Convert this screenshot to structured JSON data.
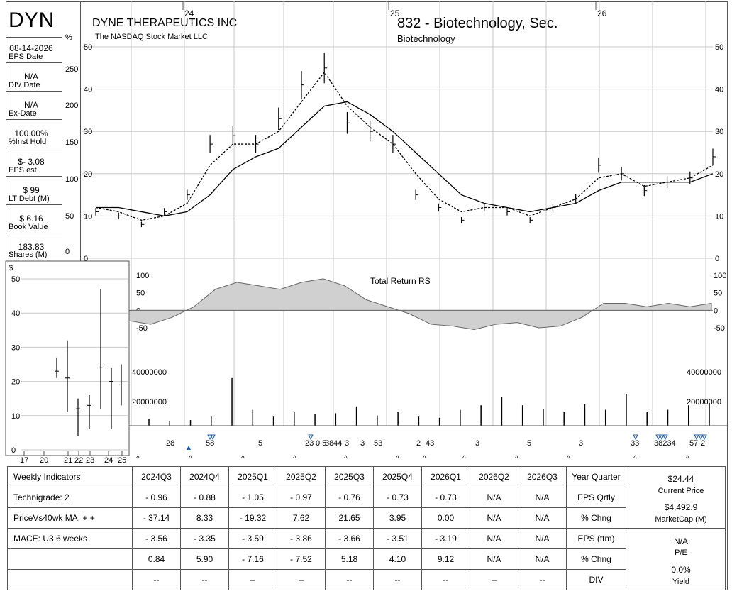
{
  "header": {
    "ticker": "DYN",
    "company": "DYNE THERAPEUTICS INC",
    "exchange": "The NASDAQ Stock Market LLC",
    "group": "832 - Biotechnology, Sec.",
    "subgroup": "Biotechnology"
  },
  "sidebar": [
    {
      "value": "08-14-2026",
      "label": "EPS Date"
    },
    {
      "value": "N/A",
      "label": "DIV Date"
    },
    {
      "value": "N/A",
      "label": "Ex-Date"
    },
    {
      "value": "100.00%",
      "label": "%Inst Hold"
    },
    {
      "value": "$- 3.08",
      "label": "EPS est."
    },
    {
      "value": "$ 99",
      "label": "LT Debt (M)"
    },
    {
      "value": "$ 6.16",
      "label": "Book Value"
    },
    {
      "value": "183.83",
      "label": "Shares (M)"
    }
  ],
  "chart_data": [
    {
      "type": "line",
      "title": "",
      "x": [
        "2024-01",
        "2024-02",
        "2024-03",
        "2024-04",
        "2024-05",
        "2024-06",
        "2024-07",
        "2024-08",
        "2024-09",
        "2024-10",
        "2024-11",
        "2024-12",
        "2025-01",
        "2025-02",
        "2025-03",
        "2025-04",
        "2025-05",
        "2025-06",
        "2025-07",
        "2025-08",
        "2025-09",
        "2025-10",
        "2025-11",
        "2025-12",
        "2026-01",
        "2026-02",
        "2026-03",
        "2026-04"
      ],
      "year_labels": [
        "24",
        "25",
        "26"
      ],
      "series": [
        {
          "name": "",
          "values": [
            11,
            10,
            8,
            11,
            15,
            27,
            29,
            27,
            33,
            41,
            45,
            32,
            30,
            27,
            15,
            12,
            9,
            12,
            11,
            9,
            12,
            14,
            22,
            20,
            16,
            18,
            19,
            24
          ]
        },
        {
          "name": "",
          "values": [
            12,
            11,
            9,
            10,
            13,
            22,
            27,
            27,
            30,
            37,
            44,
            36,
            31,
            27,
            20,
            14,
            11,
            12,
            12,
            10,
            12,
            14,
            19,
            20,
            17,
            18,
            19,
            22
          ]
        },
        {
          "name": "",
          "values": [
            12,
            12,
            11,
            10,
            11,
            15,
            21,
            24,
            26,
            31,
            36,
            37,
            34,
            30,
            25,
            20,
            15,
            13,
            12,
            11,
            12,
            13,
            16,
            18,
            18,
            18,
            18,
            20
          ]
        }
      ],
      "ylim": [
        0,
        50
      ],
      "yticks": [
        0,
        10,
        20,
        30,
        40,
        50
      ],
      "pct_ticks": [
        "0",
        "50",
        "100",
        "150",
        "200",
        "250",
        "%"
      ]
    },
    {
      "type": "area",
      "title": "Total Return RS",
      "values": [
        -30,
        -40,
        -20,
        10,
        60,
        80,
        70,
        60,
        80,
        90,
        70,
        30,
        10,
        -10,
        -40,
        -45,
        -55,
        -40,
        -35,
        -50,
        -45,
        -20,
        20,
        20,
        10,
        20,
        10,
        20
      ],
      "ylim": [
        -50,
        100
      ],
      "yticks": [
        100,
        50,
        0,
        -50
      ]
    },
    {
      "type": "bar",
      "title": "Volume",
      "values": [
        6,
        4,
        5,
        8,
        42,
        14,
        8,
        12,
        10,
        11,
        17,
        9,
        12,
        8,
        7,
        14,
        18,
        25,
        18,
        15,
        12,
        19,
        14,
        28,
        12,
        14,
        18,
        20
      ],
      "ytick_labels": [
        "40000000",
        "20000000"
      ],
      "counts": [
        "28",
        "58",
        "5",
        "23",
        "0 5",
        "38",
        "44",
        "3",
        "3",
        "53",
        "2",
        "43",
        "3",
        "5",
        "3",
        "33",
        "38234",
        "57",
        "2"
      ]
    },
    {
      "type": "line",
      "title": "",
      "x_labels": [
        "17",
        "20",
        "21",
        "22",
        "23",
        "24",
        "25"
      ],
      "y_unit": "$",
      "yticks": [
        0,
        10,
        20,
        30,
        40,
        50
      ],
      "ylim": [
        0,
        50
      ],
      "ranges": [
        {
          "low": 21,
          "high": 27,
          "close": 23
        },
        {
          "low": 11,
          "high": 32,
          "close": 21
        },
        {
          "low": 4,
          "high": 15,
          "close": 12
        },
        {
          "low": 6,
          "high": 16,
          "close": 13
        },
        {
          "low": 12,
          "high": 47,
          "close": 24
        },
        {
          "low": 6,
          "high": 24,
          "close": 20
        },
        {
          "low": 13,
          "high": 25,
          "close": 19
        }
      ]
    }
  ],
  "table": {
    "headers": [
      "Weekly Indicators",
      "2024Q3",
      "2024Q4",
      "2025Q1",
      "2025Q2",
      "2025Q3",
      "2025Q4",
      "2026Q1",
      "2026Q2",
      "2026Q3",
      "Year Quarter"
    ],
    "rows": [
      {
        "label": "Technigrade: 2",
        "values": [
          "- 0.96",
          "- 0.88",
          "- 1.05",
          "- 0.97",
          "- 0.76",
          "- 0.73",
          "- 0.73",
          "N/A",
          "N/A"
        ],
        "tail": "EPS Qrtly"
      },
      {
        "label": "PriceVs40wk MA:  + +",
        "values": [
          "- 37.14",
          "8.33",
          "- 19.32",
          "7.62",
          "21.65",
          "3.95",
          "0.00",
          "N/A",
          "N/A"
        ],
        "tail": "% Chng"
      },
      {
        "label": "MACE: U3  6 weeks",
        "values": [
          "- 3.56",
          "- 3.35",
          "- 3.59",
          "- 3.86",
          "- 3.66",
          "- 3.51",
          "- 3.19",
          "N/A",
          "N/A"
        ],
        "tail": "EPS (ttm)"
      },
      {
        "label": "",
        "values": [
          "0.84",
          "5.90",
          "- 7.16",
          "- 7.52",
          "5.18",
          "4.10",
          "9.12",
          "N/A",
          "N/A"
        ],
        "tail": "% Chng"
      },
      {
        "label": "",
        "values": [
          "--",
          "--",
          "--",
          "--",
          "--",
          "--",
          "--",
          "--",
          "--"
        ],
        "tail": "DIV"
      }
    ]
  },
  "right_panel": {
    "price": "$24.44",
    "price_label": "Current Price",
    "mcap": "$4,492.9",
    "mcap_label": "MarketCap (M)",
    "pe": "N/A",
    "pe_label": "P/E",
    "yield": "0.0%",
    "yield_label": "Yield"
  }
}
